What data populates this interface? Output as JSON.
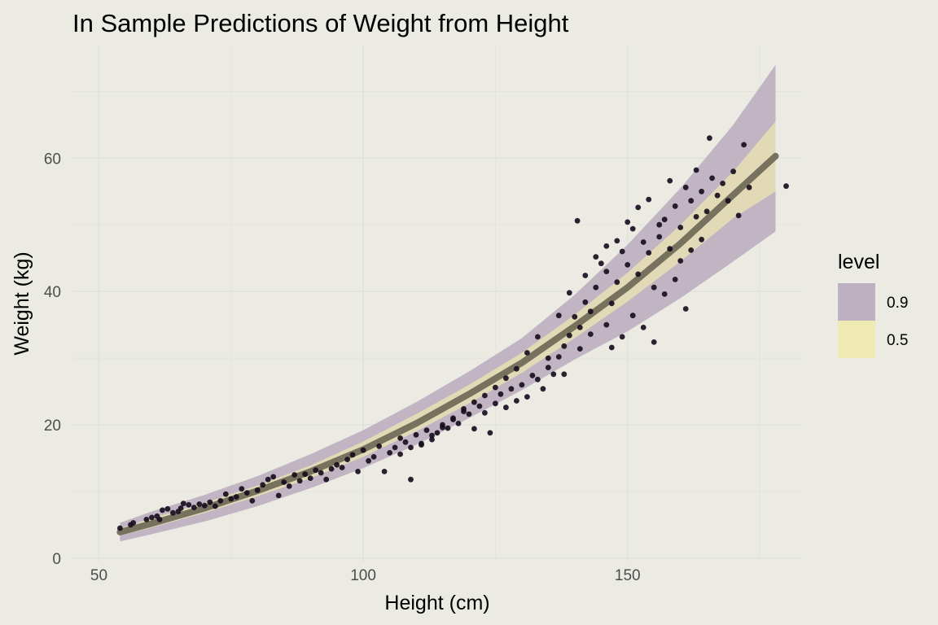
{
  "chart_data": {
    "type": "scatter",
    "title": "In Sample Predictions of Weight from Height",
    "xlabel": "Height (cm)",
    "ylabel": "Weight (kg)",
    "xlim": [
      45,
      183
    ],
    "ylim": [
      -0.5,
      77
    ],
    "x_ticks": [
      50,
      100,
      150
    ],
    "y_ticks": [
      0,
      20,
      40,
      60
    ],
    "grid": true,
    "legend": {
      "title": "level",
      "position": "right",
      "entries": [
        {
          "label": "0.9",
          "color": "#bdb0c0"
        },
        {
          "label": "0.5",
          "color": "#efe9b2"
        }
      ]
    },
    "colors": {
      "background": "#ebebe4",
      "grid": "#e2e2dc",
      "band_90": "#bdb0c0",
      "band_50": "#efe9b2",
      "line": "#6b6654",
      "points": "#140b1c"
    },
    "series": [
      {
        "type": "band",
        "level": "0.9",
        "x": [
          54,
          60,
          70,
          80,
          90,
          100,
          110,
          120,
          130,
          140,
          150,
          160,
          170,
          178
        ],
        "lower": [
          2.5,
          3.6,
          5.5,
          7.8,
          10.5,
          13.5,
          17.0,
          21.0,
          25.2,
          29.8,
          34.0,
          39.0,
          44.5,
          49.0
        ],
        "upper": [
          5.3,
          7.0,
          9.5,
          12.3,
          15.6,
          19.2,
          23.4,
          28.0,
          33.0,
          39.5,
          47.0,
          55.5,
          65.0,
          74.0
        ]
      },
      {
        "type": "band",
        "level": "0.5",
        "x": [
          54,
          60,
          70,
          80,
          90,
          100,
          110,
          120,
          130,
          140,
          150,
          160,
          170,
          178
        ],
        "lower": [
          3.4,
          4.6,
          6.8,
          9.3,
          12.0,
          15.2,
          19.0,
          23.2,
          27.8,
          33.0,
          38.5,
          44.5,
          51.0,
          55.0
        ],
        "upper": [
          4.5,
          6.0,
          8.3,
          10.9,
          13.9,
          17.5,
          21.6,
          26.0,
          30.8,
          36.5,
          42.8,
          50.0,
          58.0,
          65.5
        ]
      },
      {
        "type": "line",
        "x": [
          54,
          60,
          70,
          80,
          90,
          100,
          110,
          120,
          130,
          140,
          150,
          160,
          170,
          178
        ],
        "y": [
          3.9,
          5.2,
          7.5,
          10.1,
          13.0,
          16.3,
          20.2,
          24.6,
          29.3,
          34.8,
          40.6,
          47.2,
          54.5,
          60.3
        ]
      },
      {
        "type": "points",
        "points": [
          [
            54,
            4.5
          ],
          [
            56,
            5.0
          ],
          [
            56.5,
            5.3
          ],
          [
            59,
            5.8
          ],
          [
            60,
            6.1
          ],
          [
            61,
            6.3
          ],
          [
            61.5,
            5.8
          ],
          [
            62,
            7.2
          ],
          [
            63,
            7.4
          ],
          [
            64,
            6.8
          ],
          [
            65,
            7.0
          ],
          [
            65.5,
            7.5
          ],
          [
            66,
            8.2
          ],
          [
            67,
            8.0
          ],
          [
            68,
            7.6
          ],
          [
            69,
            8.1
          ],
          [
            70,
            7.9
          ],
          [
            71,
            8.4
          ],
          [
            72,
            7.8
          ],
          [
            73,
            8.6
          ],
          [
            74,
            9.6
          ],
          [
            75,
            8.9
          ],
          [
            76,
            9.2
          ],
          [
            77,
            10.4
          ],
          [
            78,
            9.8
          ],
          [
            79,
            8.6
          ],
          [
            80,
            10.2
          ],
          [
            81,
            11.0
          ],
          [
            82,
            11.8
          ],
          [
            83,
            12.2
          ],
          [
            84,
            9.4
          ],
          [
            85,
            11.4
          ],
          [
            86,
            10.8
          ],
          [
            87,
            12.5
          ],
          [
            88,
            11.6
          ],
          [
            89,
            12.6
          ],
          [
            90,
            12.0
          ],
          [
            91,
            13.2
          ],
          [
            92,
            12.8
          ],
          [
            93,
            11.8
          ],
          [
            94,
            13.4
          ],
          [
            95,
            14.0
          ],
          [
            96,
            13.6
          ],
          [
            97,
            14.8
          ],
          [
            98,
            15.5
          ],
          [
            99,
            13.0
          ],
          [
            100,
            16.2
          ],
          [
            101,
            14.6
          ],
          [
            102,
            15.2
          ],
          [
            103,
            16.8
          ],
          [
            104,
            13.0
          ],
          [
            105,
            15.8
          ],
          [
            106,
            16.6
          ],
          [
            107,
            18.0
          ],
          [
            108,
            17.4
          ],
          [
            109,
            11.8
          ],
          [
            110,
            18.5
          ],
          [
            111,
            17.0
          ],
          [
            112,
            19.2
          ],
          [
            113,
            17.8
          ],
          [
            114,
            18.8
          ],
          [
            115,
            20.0
          ],
          [
            116,
            19.5
          ],
          [
            117,
            21.0
          ],
          [
            118,
            20.2
          ],
          [
            119,
            22.4
          ],
          [
            120,
            21.6
          ],
          [
            121,
            19.4
          ],
          [
            122,
            22.8
          ],
          [
            123,
            21.8
          ],
          [
            124,
            18.8
          ],
          [
            125,
            23.2
          ],
          [
            126,
            24.6
          ],
          [
            127,
            22.6
          ],
          [
            128,
            25.4
          ],
          [
            129,
            23.6
          ],
          [
            130,
            26.0
          ],
          [
            131,
            24.2
          ],
          [
            132,
            27.4
          ],
          [
            133,
            26.8
          ],
          [
            134,
            25.4
          ],
          [
            135,
            28.6
          ],
          [
            136,
            27.6
          ],
          [
            137,
            30.2
          ],
          [
            138,
            31.8
          ],
          [
            139,
            33.4
          ],
          [
            140,
            36.2
          ],
          [
            140.5,
            50.6
          ],
          [
            141,
            34.6
          ],
          [
            142,
            38.4
          ],
          [
            143,
            37.0
          ],
          [
            144,
            40.6
          ],
          [
            145,
            44.2
          ],
          [
            146,
            43.0
          ],
          [
            147,
            38.2
          ],
          [
            148,
            41.4
          ],
          [
            149,
            46.0
          ],
          [
            150,
            44.0
          ],
          [
            151,
            49.4
          ],
          [
            152,
            42.6
          ],
          [
            153,
            47.4
          ],
          [
            154,
            45.8
          ],
          [
            155,
            40.6
          ],
          [
            156,
            48.2
          ],
          [
            157,
            50.8
          ],
          [
            158,
            46.4
          ],
          [
            159,
            52.8
          ],
          [
            160,
            49.6
          ],
          [
            161,
            37.4
          ],
          [
            162,
            53.6
          ],
          [
            163,
            51.2
          ],
          [
            164,
            55.0
          ],
          [
            165,
            52.0
          ],
          [
            165.5,
            63.0
          ],
          [
            166,
            57.0
          ],
          [
            167,
            54.4
          ],
          [
            168,
            56.2
          ],
          [
            169,
            53.6
          ],
          [
            170,
            58.0
          ],
          [
            171,
            51.4
          ],
          [
            172,
            62.0
          ],
          [
            173,
            55.6
          ],
          [
            180,
            55.8
          ],
          [
            135,
            30.0
          ],
          [
            138,
            27.6
          ],
          [
            141,
            31.4
          ],
          [
            143,
            33.6
          ],
          [
            146,
            35.0
          ],
          [
            147,
            31.6
          ],
          [
            149,
            33.2
          ],
          [
            151,
            36.4
          ],
          [
            153,
            34.6
          ],
          [
            155,
            32.4
          ],
          [
            157,
            39.6
          ],
          [
            159,
            41.8
          ],
          [
            160,
            44.6
          ],
          [
            162,
            46.2
          ],
          [
            164,
            47.8
          ],
          [
            150,
            50.4
          ],
          [
            152,
            52.6
          ],
          [
            154,
            53.8
          ],
          [
            156,
            50.0
          ],
          [
            158,
            56.6
          ],
          [
            161,
            55.6
          ],
          [
            163,
            58.2
          ],
          [
            148,
            47.6
          ],
          [
            146,
            46.8
          ],
          [
            144,
            45.2
          ],
          [
            142,
            42.4
          ],
          [
            139,
            39.8
          ],
          [
            137,
            36.4
          ],
          [
            133,
            33.2
          ],
          [
            131,
            30.8
          ],
          [
            129,
            28.4
          ],
          [
            127,
            27.0
          ],
          [
            125,
            25.6
          ],
          [
            123,
            24.4
          ],
          [
            121,
            23.4
          ],
          [
            119,
            22.0
          ],
          [
            117,
            20.8
          ],
          [
            115,
            19.6
          ],
          [
            113,
            18.4
          ],
          [
            111,
            17.2
          ],
          [
            109,
            16.6
          ],
          [
            107,
            15.6
          ]
        ]
      }
    ]
  }
}
